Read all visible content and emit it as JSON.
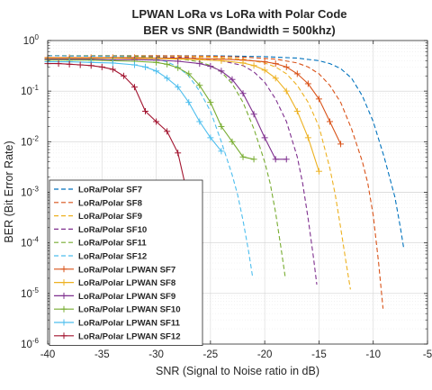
{
  "chart_data": {
    "type": "line",
    "title": [
      "LPWAN LoRa vs LoRa with Polar Code",
      "BER vs SNR (Bandwidth = 500khz)"
    ],
    "xlabel": "SNR (Signal to Noise ratio in dB)",
    "ylabel": "BER (Bit Error Rate)",
    "xlim": [
      -40,
      -5
    ],
    "ylim": [
      1e-06,
      1
    ],
    "yscale": "log",
    "grid": true,
    "xticks": [
      -40,
      -35,
      -30,
      -25,
      -20,
      -15,
      -10,
      -5
    ],
    "xtick_labels": [
      "-40",
      "-35",
      "-30",
      "-25",
      "-20",
      "-15",
      "-10",
      "-5"
    ],
    "yticks": [
      1e-06,
      1e-05,
      0.0001,
      0.001,
      0.01,
      0.1,
      1
    ],
    "ytick_labels": [
      {
        "base": "10",
        "exp": "-6"
      },
      {
        "base": "10",
        "exp": "-5"
      },
      {
        "base": "10",
        "exp": "-4"
      },
      {
        "base": "10",
        "exp": "-3"
      },
      {
        "base": "10",
        "exp": "-2"
      },
      {
        "base": "10",
        "exp": "-1"
      },
      {
        "base": "10",
        "exp": "0"
      }
    ],
    "legend_position": "bottom-left",
    "series": [
      {
        "name": "LoRa/Polar SF7",
        "color": "#0072BD",
        "style": "dashed",
        "marker": "none",
        "x": [
          -40,
          -30,
          -25,
          -20,
          -17,
          -15,
          -14,
          -13,
          -12,
          -11,
          -10,
          -9,
          -8,
          -7.5,
          -7.2
        ],
        "y": [
          0.5,
          0.5,
          0.5,
          0.48,
          0.45,
          0.4,
          0.35,
          0.28,
          0.18,
          0.08,
          0.025,
          0.005,
          0.0008,
          0.0002,
          8e-05
        ]
      },
      {
        "name": "LoRa/Polar SF8",
        "color": "#D95319",
        "style": "dashed",
        "marker": "none",
        "x": [
          -40,
          -30,
          -25,
          -22,
          -19,
          -17,
          -16,
          -15,
          -14,
          -13,
          -12,
          -11,
          -10.5,
          -10,
          -9.5,
          -9.1
        ],
        "y": [
          0.5,
          0.5,
          0.49,
          0.47,
          0.43,
          0.36,
          0.3,
          0.22,
          0.13,
          0.06,
          0.018,
          0.004,
          0.0015,
          0.00035,
          4e-05,
          5e-06
        ]
      },
      {
        "name": "LoRa/Polar SF9",
        "color": "#EDB120",
        "style": "dashed",
        "marker": "none",
        "x": [
          -40,
          -30,
          -25,
          -22,
          -20,
          -19,
          -18,
          -17,
          -16,
          -15,
          -14,
          -13.5,
          -13,
          -12.5,
          -12.1
        ],
        "y": [
          0.5,
          0.49,
          0.47,
          0.43,
          0.36,
          0.3,
          0.22,
          0.13,
          0.06,
          0.02,
          0.003,
          0.0009,
          0.0002,
          4e-05,
          1.2e-05
        ]
      },
      {
        "name": "LoRa/Polar SF10",
        "color": "#7E2F8E",
        "style": "dashed",
        "marker": "none",
        "x": [
          -40,
          -32,
          -27,
          -24,
          -22,
          -21,
          -20,
          -19,
          -18,
          -17,
          -16.5,
          -16,
          -15.5,
          -15.2
        ],
        "y": [
          0.5,
          0.49,
          0.46,
          0.4,
          0.32,
          0.24,
          0.15,
          0.07,
          0.025,
          0.005,
          0.0015,
          0.0003,
          5e-05,
          1.5e-05
        ]
      },
      {
        "name": "LoRa/Polar SF11",
        "color": "#77AC30",
        "style": "dashed",
        "marker": "none",
        "x": [
          -40,
          -32,
          -28,
          -26,
          -25,
          -24,
          -23,
          -22,
          -21,
          -20,
          -19.5,
          -19,
          -18.5,
          -18.1
        ],
        "y": [
          0.5,
          0.49,
          0.44,
          0.38,
          0.32,
          0.24,
          0.14,
          0.06,
          0.018,
          0.004,
          0.0015,
          0.0004,
          8e-05,
          2e-05
        ]
      },
      {
        "name": "LoRa/Polar SF12",
        "color": "#4DBEEE",
        "style": "dashed",
        "marker": "none",
        "x": [
          -40,
          -33,
          -30,
          -29,
          -28,
          -27,
          -26,
          -25,
          -24,
          -23,
          -22.5,
          -22,
          -21.5,
          -21.1
        ],
        "y": [
          0.5,
          0.48,
          0.43,
          0.38,
          0.3,
          0.2,
          0.1,
          0.04,
          0.01,
          0.0022,
          0.0009,
          0.00028,
          7e-05,
          2e-05
        ]
      },
      {
        "name": "LoRa/Polar LPWAN SF7",
        "color": "#D95319",
        "style": "solid",
        "marker": "plus",
        "x": [
          -40,
          -38,
          -36,
          -34,
          -32,
          -30,
          -28,
          -26,
          -24,
          -22,
          -20,
          -19,
          -18,
          -17,
          -16,
          -15,
          -14,
          -13
        ],
        "y": [
          0.46,
          0.46,
          0.46,
          0.46,
          0.46,
          0.45,
          0.45,
          0.44,
          0.43,
          0.41,
          0.38,
          0.35,
          0.3,
          0.22,
          0.14,
          0.07,
          0.025,
          0.009
        ]
      },
      {
        "name": "LoRa/Polar LPWAN SF8",
        "color": "#EDB120",
        "style": "solid",
        "marker": "plus",
        "x": [
          -40,
          -38,
          -36,
          -34,
          -32,
          -30,
          -28,
          -26,
          -24,
          -22,
          -21,
          -20,
          -19,
          -18,
          -17,
          -16,
          -15
        ],
        "y": [
          0.45,
          0.45,
          0.45,
          0.45,
          0.44,
          0.44,
          0.43,
          0.42,
          0.4,
          0.36,
          0.32,
          0.26,
          0.18,
          0.1,
          0.04,
          0.012,
          0.0026
        ]
      },
      {
        "name": "LoRa/Polar LPWAN SF9",
        "color": "#7E2F8E",
        "style": "solid",
        "marker": "plus",
        "x": [
          -40,
          -38,
          -36,
          -34,
          -32,
          -30,
          -28,
          -26,
          -25,
          -24,
          -23,
          -22,
          -21,
          -20,
          -19,
          -18
        ],
        "y": [
          0.43,
          0.43,
          0.43,
          0.42,
          0.42,
          0.41,
          0.39,
          0.35,
          0.31,
          0.25,
          0.17,
          0.09,
          0.035,
          0.012,
          0.0045,
          0.0045
        ]
      },
      {
        "name": "LoRa/Polar LPWAN SF10",
        "color": "#77AC30",
        "style": "solid",
        "marker": "plus",
        "x": [
          -40,
          -38,
          -36,
          -34,
          -32,
          -30,
          -29,
          -28,
          -27,
          -26,
          -25,
          -24,
          -23,
          -22,
          -21
        ],
        "y": [
          0.41,
          0.41,
          0.41,
          0.4,
          0.39,
          0.37,
          0.34,
          0.29,
          0.22,
          0.13,
          0.06,
          0.02,
          0.01,
          0.005,
          0.0045
        ]
      },
      {
        "name": "LoRa/Polar LPWAN SF11",
        "color": "#4DBEEE",
        "style": "solid",
        "marker": "plus",
        "x": [
          -40,
          -38,
          -36,
          -34,
          -32,
          -31,
          -30,
          -29,
          -28,
          -27,
          -26,
          -25,
          -24
        ],
        "y": [
          0.38,
          0.38,
          0.37,
          0.36,
          0.33,
          0.3,
          0.25,
          0.18,
          0.12,
          0.06,
          0.025,
          0.012,
          0.0065
        ]
      },
      {
        "name": "LoRa/Polar LPWAN SF12",
        "color": "#A2142F",
        "style": "solid",
        "marker": "plus",
        "x": [
          -40,
          -39,
          -38,
          -37,
          -36,
          -35,
          -34,
          -33,
          -32,
          -31,
          -30,
          -29,
          -28,
          -27,
          -26
        ],
        "y": [
          0.35,
          0.35,
          0.34,
          0.33,
          0.32,
          0.3,
          0.27,
          0.2,
          0.12,
          0.04,
          0.025,
          0.016,
          0.006,
          0.0007,
          0.0001
        ]
      }
    ]
  }
}
